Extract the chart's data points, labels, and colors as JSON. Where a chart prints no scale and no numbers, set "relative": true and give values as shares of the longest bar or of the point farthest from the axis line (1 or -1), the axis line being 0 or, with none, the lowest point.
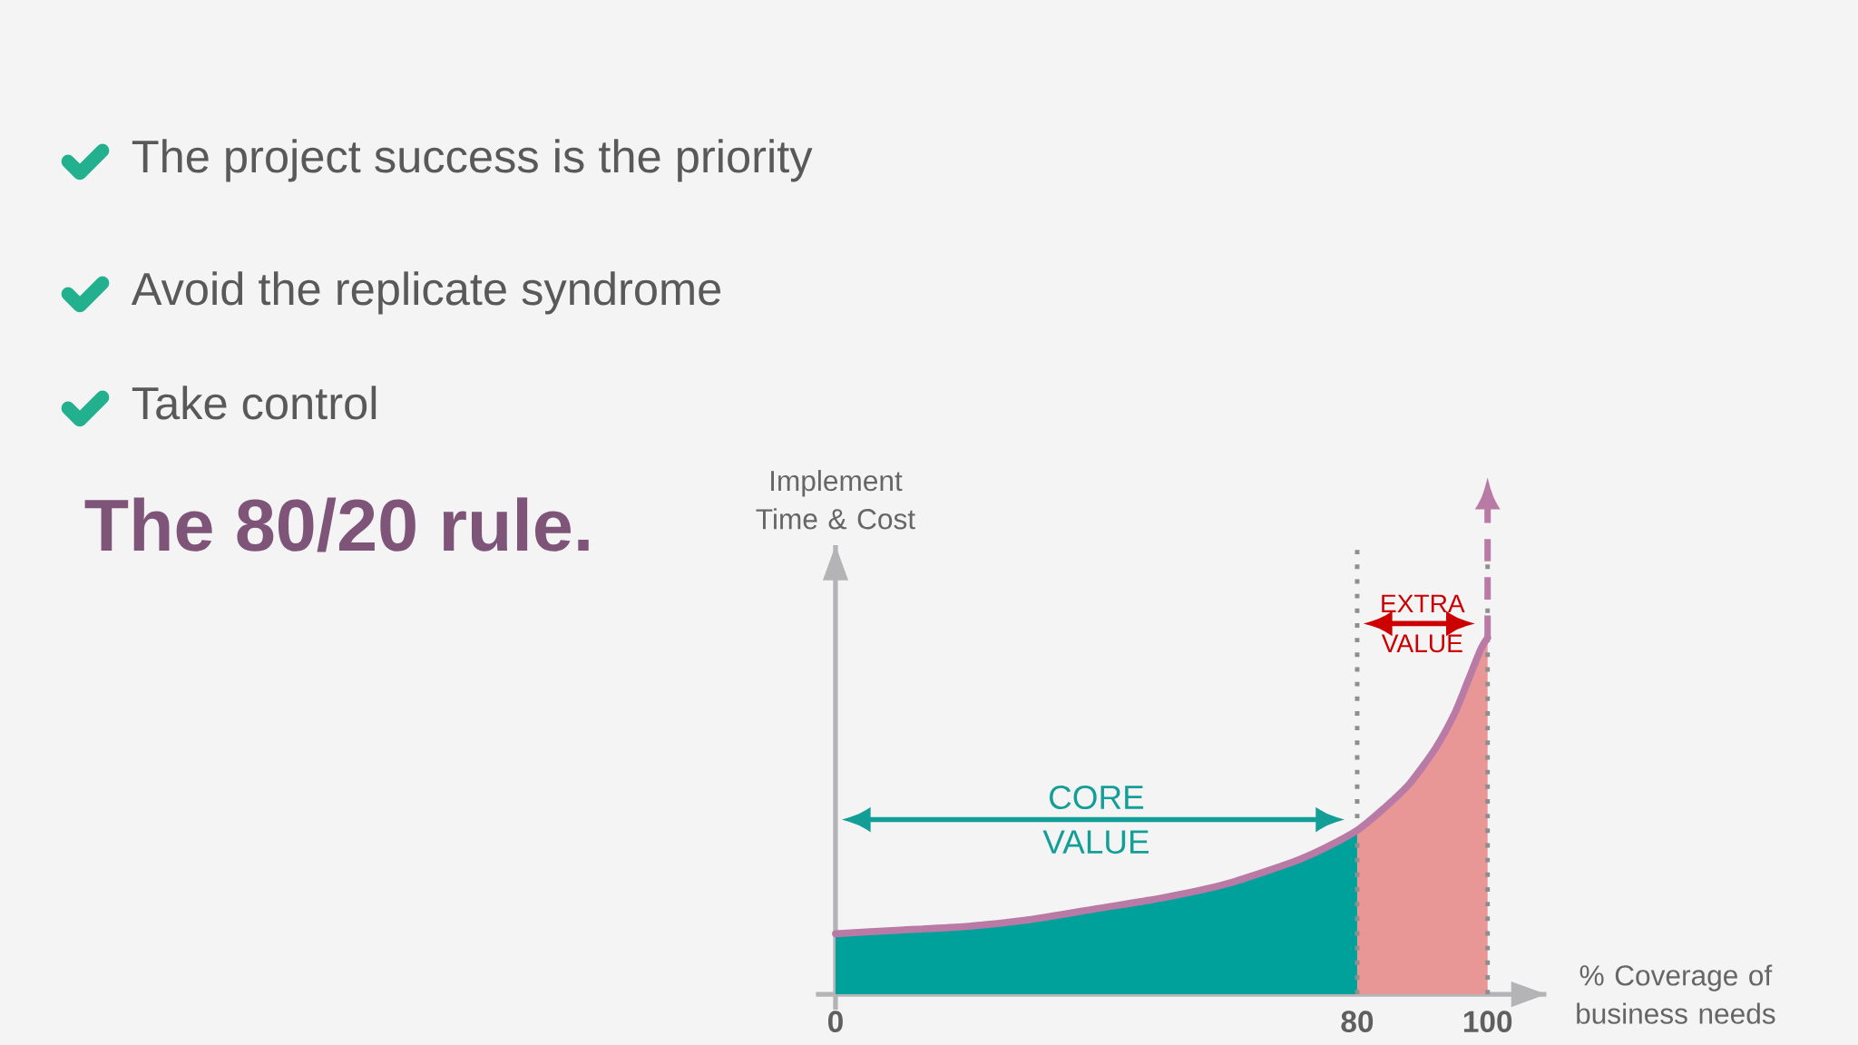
{
  "chart_data": {
    "type": "area",
    "title": "The 80/20 rule.",
    "xlabel": "% Coverage of business needs",
    "ylabel": "Implement Time & Cost",
    "xlim": [
      -3,
      109
    ],
    "xticks": [
      0,
      80,
      100
    ],
    "relative": true,
    "tick_labels": "x",
    "series": [
      {
        "color": "#00a19a",
        "x": [
          0,
          10,
          20,
          30,
          40,
          50,
          60,
          70,
          75,
          80
        ],
        "values": [
          0.17,
          0.18,
          0.19,
          0.21,
          0.24,
          0.27,
          0.31,
          0.37,
          0.41,
          0.46
        ]
      },
      {
        "color": "#e89696",
        "x": [
          80,
          84,
          88,
          92,
          95,
          97,
          99,
          100
        ],
        "values": [
          0.46,
          0.52,
          0.59,
          0.69,
          0.79,
          0.88,
          0.97,
          1
        ]
      },
      {
        "type": "line",
        "color": "#b97ba6",
        "x": [
          0,
          10,
          20,
          30,
          40,
          50,
          60,
          70,
          75,
          80,
          84,
          88,
          92,
          95,
          97,
          99,
          100
        ],
        "values": [
          0.17,
          0.18,
          0.19,
          0.21,
          0.24,
          0.27,
          0.31,
          0.37,
          0.41,
          0.46,
          0.52,
          0.59,
          0.69,
          0.79,
          0.88,
          0.97,
          1
        ]
      }
    ],
    "ref_lines": [
      {
        "axis": "x",
        "value": 80,
        "color": "#8e8e8e",
        "line_style": "dotted"
      },
      {
        "axis": "x",
        "value": 100,
        "color": "#8e8e8e",
        "line_style": "dotted"
      }
    ],
    "annotations": [
      "The project success is the priority",
      "Avoid the replicate syndrome",
      "Take control",
      "CORE VALUE",
      "EXTRA VALUE"
    ]
  }
}
